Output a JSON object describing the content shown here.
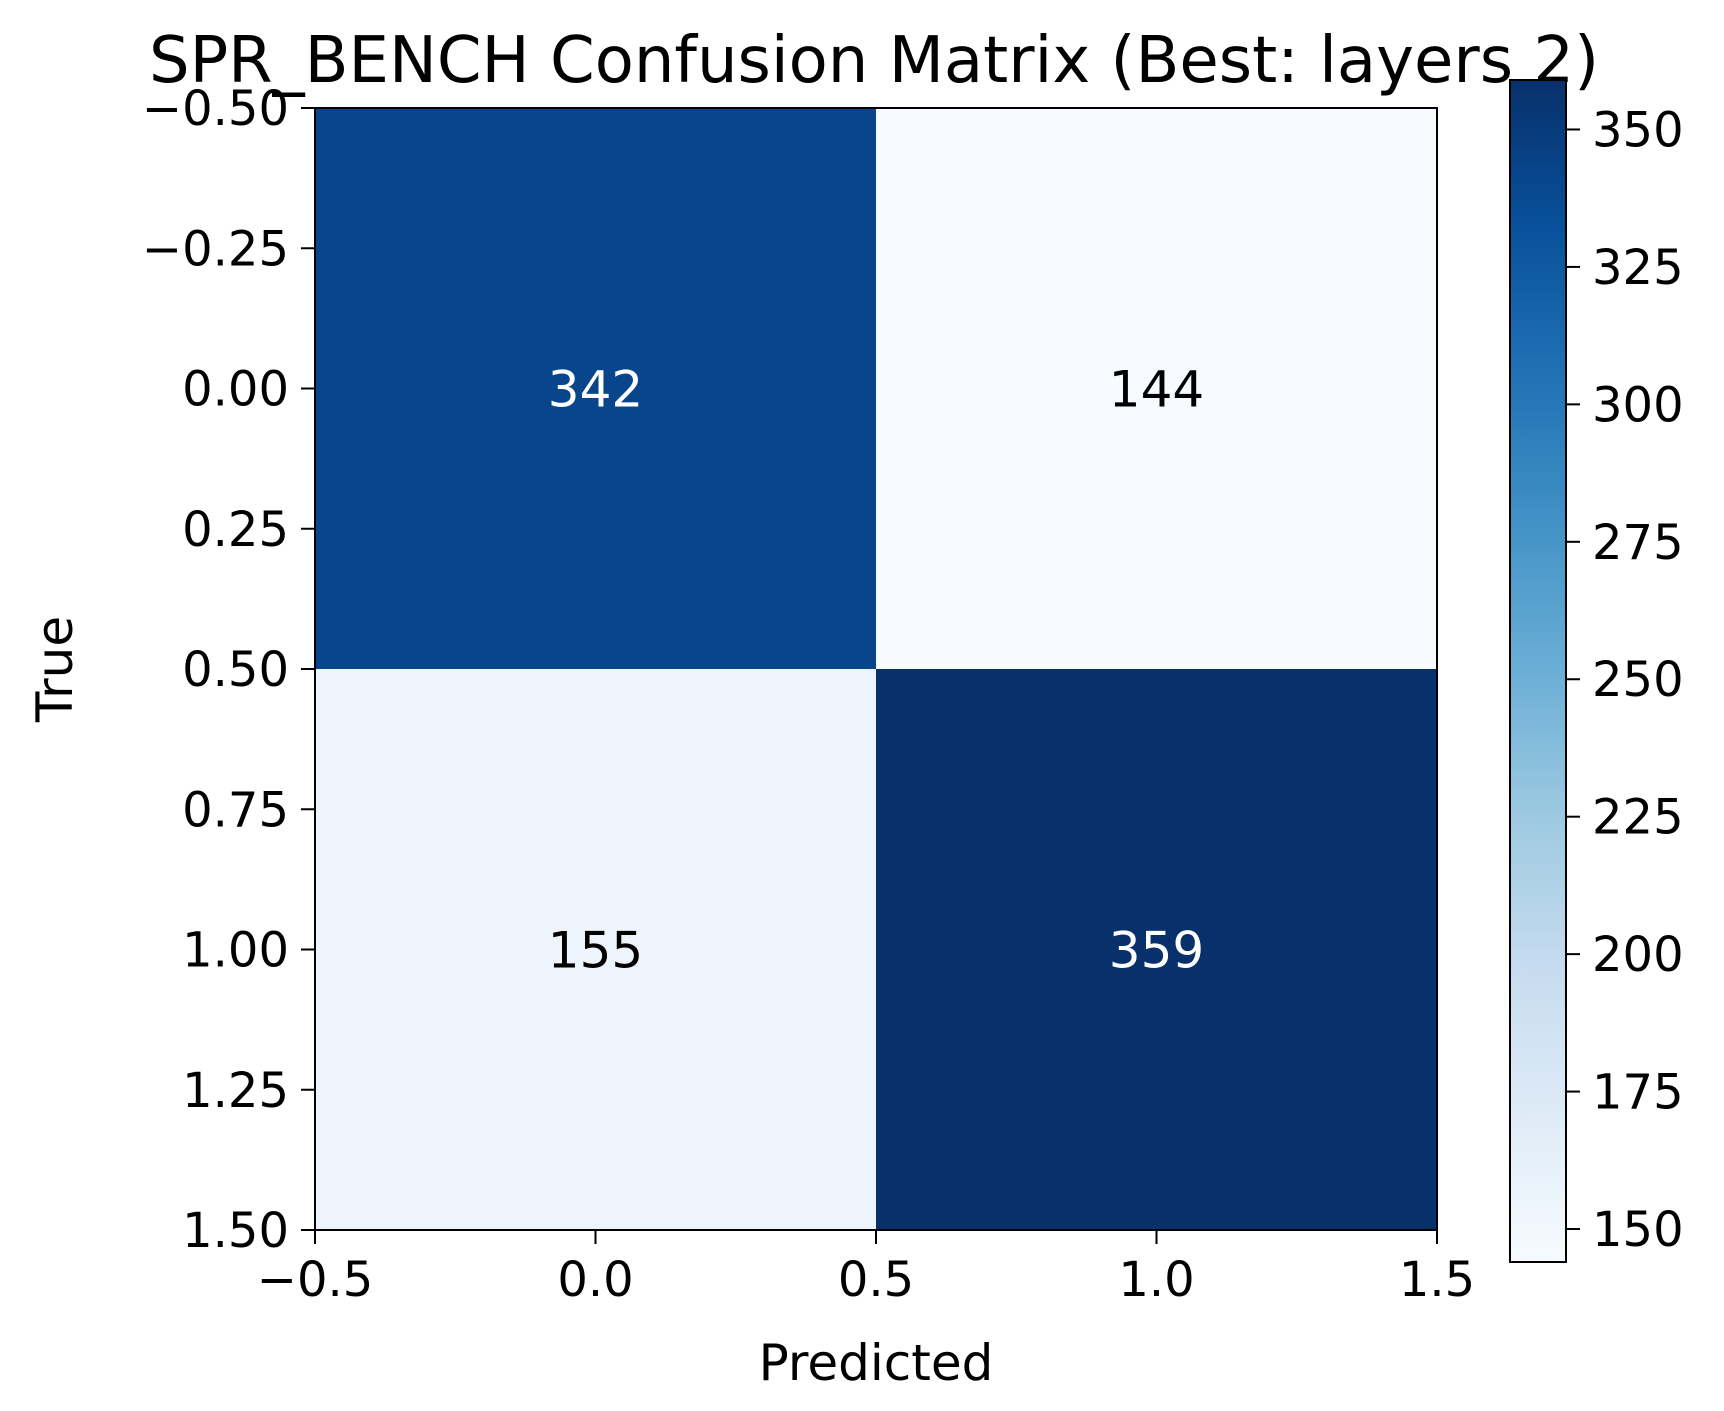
{
  "chart_data": {
    "type": "heatmap",
    "title": "SPR_BENCH Confusion Matrix (Best: layers 2)",
    "xlabel": "Predicted",
    "ylabel": "True",
    "matrix": [
      [
        342,
        144
      ],
      [
        155,
        359
      ]
    ],
    "xlim": [
      -0.5,
      1.5
    ],
    "ylim": [
      1.5,
      -0.5
    ],
    "xticks": [
      "−0.5",
      "0.0",
      "0.5",
      "1.0",
      "1.5"
    ],
    "yticks": [
      "−0.50",
      "−0.25",
      "0.00",
      "0.25",
      "0.50",
      "0.75",
      "1.00",
      "1.25",
      "1.50"
    ],
    "colorbar": {
      "colormap": "Blues",
      "range": [
        144,
        359
      ],
      "ticks": [
        "150",
        "175",
        "200",
        "225",
        "250",
        "275",
        "300",
        "325",
        "350"
      ]
    },
    "grid": false
  }
}
